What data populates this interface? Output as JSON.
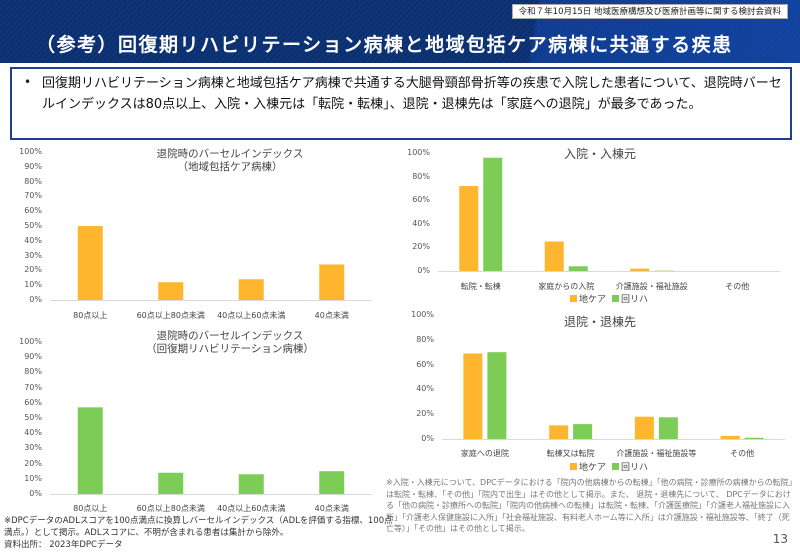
{
  "header": {
    "meeting_label": "令和７年10月15日 地域医療構想及び医療計画等に関する検討会資料",
    "title": "（参考）回復期リハビリテーション病棟と地域包括ケア病棟に共通する疾患"
  },
  "summary": {
    "bullet": "•",
    "text": "回復期リハビリテーション病棟と地域包括ケア病棟で共通する大腿骨頸部骨折等の疾患で入院した患者について、退院時バーセルインデックスは80点以上、入院・入棟元は「転院・転棟」、退院・退棟先は「家庭への退院」が最多であった。"
  },
  "colors": {
    "chikea": "#ffb62e",
    "kairiha": "#7ccc55",
    "axis": "#d9d9d9"
  },
  "chart_data": [
    {
      "id": "barthel-chikea",
      "type": "bar",
      "title": "退院時のバーセルインデックス",
      "subtitle": "（地域包括ケア病棟）",
      "categories": [
        "80点以上",
        "60点以上80点未満",
        "40点以上60点未満",
        "40点未満"
      ],
      "values": [
        50,
        12,
        14,
        24
      ],
      "yticks": [
        "0%",
        "10%",
        "20%",
        "30%",
        "40%",
        "50%",
        "60%",
        "70%",
        "80%",
        "90%",
        "100%"
      ],
      "ylim": [
        0,
        100
      ],
      "color_key": "chikea",
      "grid": false
    },
    {
      "id": "barthel-kairiha",
      "type": "bar",
      "title": "退院時のバーセルインデックス",
      "subtitle": "（回復期リハビリテーション病棟）",
      "categories": [
        "80点以上",
        "60点以上80点未満",
        "40点以上60点未満",
        "40点未満"
      ],
      "values": [
        57,
        14,
        13,
        15
      ],
      "yticks": [
        "0%",
        "10%",
        "20%",
        "30%",
        "40%",
        "50%",
        "60%",
        "70%",
        "80%",
        "90%",
        "100%"
      ],
      "ylim": [
        0,
        100
      ],
      "color_key": "kairiha",
      "grid": false
    },
    {
      "id": "admission-source",
      "type": "bar",
      "title": "入院・入棟元",
      "subtitle": "",
      "categories": [
        "転院・転棟",
        "家庭からの入院",
        "介護施設・福祉施設",
        "その他"
      ],
      "series": [
        {
          "name": "地ケア",
          "color_key": "chikea",
          "values": [
            72,
            25,
            2,
            0
          ]
        },
        {
          "name": "回リハ",
          "color_key": "kairiha",
          "values": [
            96,
            4,
            0.3,
            0
          ]
        }
      ],
      "yticks": [
        "0%",
        "20%",
        "40%",
        "60%",
        "80%",
        "100%"
      ],
      "ylim": [
        0,
        100
      ],
      "legend": "bottom",
      "grid": false
    },
    {
      "id": "discharge-destination",
      "type": "bar",
      "title": "退院・退棟先",
      "subtitle": "",
      "categories": [
        "家庭への退院",
        "転棟又は転院",
        "介護施設・福祉施設等",
        "その他"
      ],
      "series": [
        {
          "name": "地ケア",
          "color_key": "chikea",
          "values": [
            69,
            11,
            18,
            2.5
          ]
        },
        {
          "name": "回リハ",
          "color_key": "kairiha",
          "values": [
            70,
            12,
            17.5,
            1
          ]
        }
      ],
      "yticks": [
        "0%",
        "20%",
        "40%",
        "60%",
        "80%",
        "100%"
      ],
      "ylim": [
        0,
        100
      ],
      "legend": "bottom",
      "grid": false
    }
  ],
  "footnotes": {
    "left_note": "※DPCデータのADLスコアを100点満点に換算しバーセルインデックス（ADLを評価する指標、100点満点。）として掲示。ADLスコアに、不明が含まれる患者は集計から除外。",
    "source": "資料出所： 2023年DPCデータ",
    "right_note": "※入院・入棟元について、DPCデータにおける「院内の他病棟からの転棟」「他の病院・診療所の病棟からの転院」は転院・転棟、「その他」「院内で出生」はその他として掲示。また、 退院・退棟先について、 DPCデータにおける「他の病院・診療所への転院」「院内の他病棟への転棟」は転院・転棟、「介護医療院」「介護老人福祉施設に入所」「介護老人保健施設に入所」「社会福祉施設、有料老人ホーム等に入所」は介護施設・福祉施設等、「終了（死亡等）」「その他」はその他として掲示。"
  },
  "page_number": "13"
}
